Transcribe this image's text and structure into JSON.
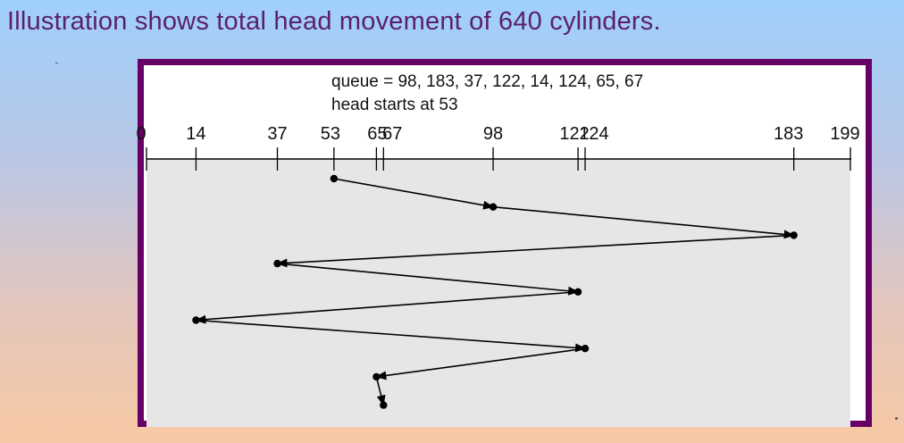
{
  "slide": {
    "title": "Illustration shows total head movement of 640 cylinders."
  },
  "figure": {
    "queue_text": "queue = 98, 183, 37, 122, 14, 124, 65, 67",
    "head_text": "head starts at 53",
    "axis_min": 0,
    "axis_max": 199,
    "tick_values": [
      0,
      14,
      37,
      53,
      65,
      67,
      98,
      122,
      124,
      183,
      199
    ],
    "tick_labels": [
      "0",
      "14",
      "37",
      "53",
      "65",
      "67",
      "98",
      "122",
      "124",
      "183",
      "199"
    ],
    "head_path": [
      53,
      98,
      183,
      37,
      122,
      14,
      124,
      65,
      67
    ]
  },
  "colors": {
    "title": "#5b1f6e",
    "frame": "#660066",
    "plot_area": "#e6e6e6",
    "line": "#000000"
  }
}
